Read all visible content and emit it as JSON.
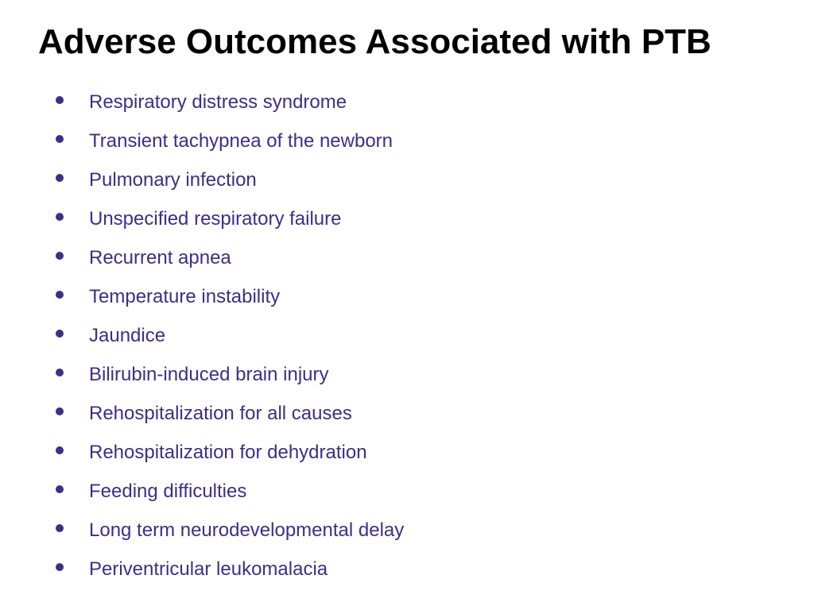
{
  "title": "Adverse Outcomes Associated with PTB",
  "title_color": "#000000",
  "title_fontsize": 44,
  "bullet_color": "#3a2f8a",
  "text_color": "#3a2f8a",
  "item_fontsize": 24,
  "background_color": "#ffffff",
  "items": [
    "Respiratory distress syndrome",
    "Transient tachypnea of the newborn",
    "Pulmonary infection",
    "Unspecified respiratory failure",
    "Recurrent apnea",
    "Temperature instability",
    "Jaundice",
    "Bilirubin-induced brain injury",
    "Rehospitalization for all causes",
    "Rehospitalization for dehydration",
    "Feeding difficulties",
    "Long term neurodevelopmental delay",
    "Periventricular leukomalacia"
  ]
}
